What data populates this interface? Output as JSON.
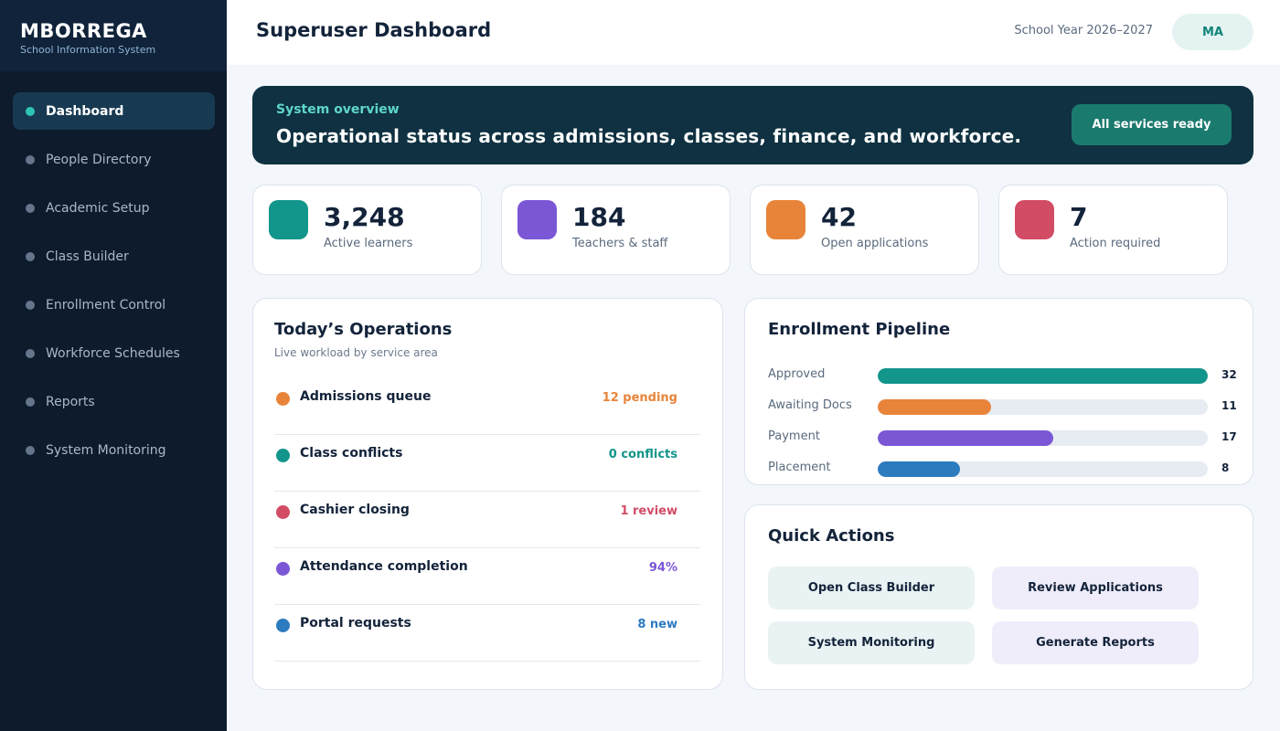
{
  "brand": {
    "name": "MBORREGA",
    "subtitle": "School Information System"
  },
  "nav": [
    {
      "label": "Dashboard",
      "active": true
    },
    {
      "label": "People Directory"
    },
    {
      "label": "Academic Setup"
    },
    {
      "label": "Class Builder"
    },
    {
      "label": "Enrollment Control"
    },
    {
      "label": "Workforce Schedules"
    },
    {
      "label": "Reports"
    },
    {
      "label": "System Monitoring"
    }
  ],
  "header": {
    "title": "Superuser Dashboard",
    "school_year": "School Year 2026–2027",
    "avatar_initials": "MA"
  },
  "banner": {
    "kicker": "System overview",
    "title": "Operational status across admissions, classes, finance, and workforce.",
    "button_label": "All services ready"
  },
  "stats": [
    {
      "value": "3,248",
      "label": "Active learners",
      "color": "#12958a"
    },
    {
      "value": "184",
      "label": "Teachers & staff",
      "color": "#7b57d6"
    },
    {
      "value": "42",
      "label": "Open applications",
      "color": "#e8843a"
    },
    {
      "value": "7",
      "label": "Action required",
      "color": "#d24c66"
    }
  ],
  "operations": {
    "title": "Today’s Operations",
    "subtitle": "Live workload by service area",
    "items": [
      {
        "name": "Admissions queue",
        "status": "12 pending",
        "color": "#e8843a"
      },
      {
        "name": "Class conflicts",
        "status": "0 conflicts",
        "color": "#12958a"
      },
      {
        "name": "Cashier closing",
        "status": "1 review",
        "color": "#d24c66"
      },
      {
        "name": "Attendance completion",
        "status": "94%",
        "color": "#7b57d6"
      },
      {
        "name": "Portal requests",
        "status": "8 new",
        "color": "#2c7bbf"
      }
    ]
  },
  "pipeline": {
    "title": "Enrollment Pipeline",
    "max": 32,
    "items": [
      {
        "label": "Approved",
        "count": 32,
        "color": "#12958a"
      },
      {
        "label": "Awaiting Docs",
        "count": 11,
        "color": "#e8843a"
      },
      {
        "label": "Payment",
        "count": 17,
        "color": "#7b57d6"
      },
      {
        "label": "Placement",
        "count": 8,
        "color": "#2c7bbf"
      }
    ]
  },
  "quick_actions": {
    "title": "Quick Actions",
    "buttons": [
      "Open Class Builder",
      "Review Applications",
      "System Monitoring",
      "Generate Reports"
    ]
  }
}
